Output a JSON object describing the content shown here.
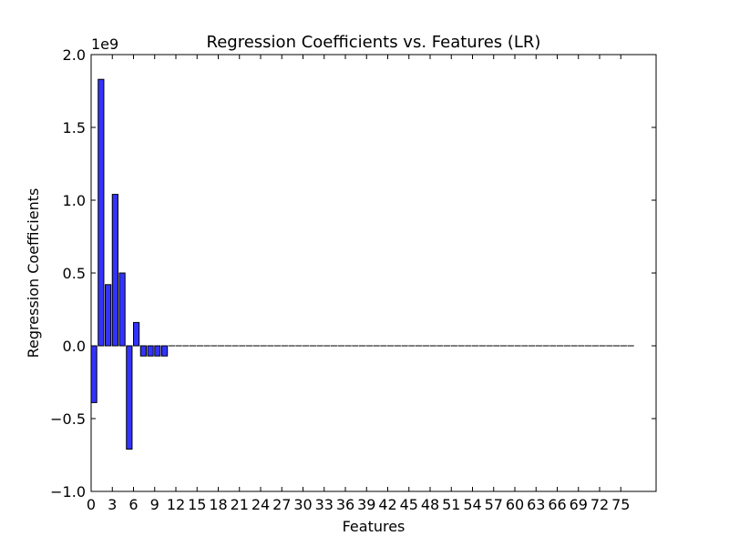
{
  "chart_data": {
    "type": "bar",
    "title": "Regression Coefficients vs. Features (LR)",
    "xlabel": "Features",
    "ylabel": "Regression Coefficients",
    "y_offset_label": "1e9",
    "ylim": [
      -1.0,
      2.0
    ],
    "xlim": [
      0,
      80
    ],
    "yticks": [
      -1.0,
      -0.5,
      0.0,
      0.5,
      1.0,
      1.5,
      2.0
    ],
    "ytick_labels": [
      "−1.0",
      "−0.5",
      "0.0",
      "0.5",
      "1.0",
      "1.5",
      "2.0"
    ],
    "xticks": [
      0,
      3,
      6,
      9,
      12,
      15,
      18,
      21,
      24,
      27,
      30,
      33,
      36,
      39,
      42,
      45,
      48,
      51,
      54,
      57,
      60,
      63,
      66,
      69,
      72,
      75
    ],
    "xtick_labels": [
      "0",
      "3",
      "6",
      "9",
      "12",
      "15",
      "18",
      "21",
      "24",
      "27",
      "30",
      "33",
      "36",
      "39",
      "42",
      "45",
      "48",
      "51",
      "54",
      "57",
      "60",
      "63",
      "66",
      "69",
      "72",
      "75"
    ],
    "bar_width": 0.8,
    "x": [
      0,
      1,
      2,
      3,
      4,
      5,
      6,
      7,
      8,
      9,
      10,
      11,
      12,
      13,
      14,
      15,
      16,
      17,
      18,
      19,
      20,
      21,
      22,
      23,
      24,
      25,
      26,
      27,
      28,
      29,
      30,
      31,
      32,
      33,
      34,
      35,
      36,
      37,
      38,
      39,
      40,
      41,
      42,
      43,
      44,
      45,
      46,
      47,
      48,
      49,
      50,
      51,
      52,
      53,
      54,
      55,
      56,
      57,
      58,
      59,
      60,
      61,
      62,
      63,
      64,
      65,
      66,
      67,
      68,
      69,
      70,
      71,
      72,
      73,
      74,
      75,
      76
    ],
    "values": [
      -0.39,
      1.83,
      0.42,
      1.04,
      0.5,
      -0.71,
      0.16,
      -0.07,
      -0.07,
      -0.07,
      -0.07,
      0,
      0,
      0,
      0,
      0,
      0,
      0,
      0,
      0,
      0,
      0,
      0,
      0,
      0,
      0,
      0,
      0,
      0,
      0,
      0,
      0,
      0,
      0,
      0,
      0,
      0,
      0,
      0,
      0,
      0,
      0,
      0,
      0,
      0,
      0,
      0,
      0,
      0,
      0,
      0,
      0,
      0,
      0,
      0,
      0,
      0,
      0,
      0,
      0,
      0,
      0,
      0,
      0,
      0,
      0,
      0,
      0,
      0,
      0,
      0,
      0,
      0,
      0,
      0,
      0,
      0
    ],
    "grid": false,
    "colors": {
      "bar": "#0000ff",
      "edge": "#000000"
    }
  }
}
